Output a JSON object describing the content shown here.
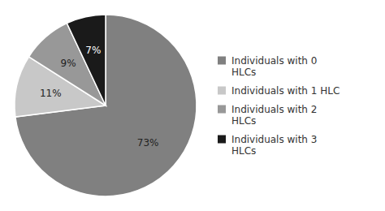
{
  "chart_data": {
    "type": "pie",
    "categories": [
      "Individuals with 0\nHLCs",
      "Individuals with 1 HLC",
      "Individuals with 2\nHLCs",
      "Individuals with 3\nHLCs"
    ],
    "values": [
      73,
      11,
      9,
      7
    ],
    "value_labels": [
      "73%",
      "11%",
      "9%",
      "7%"
    ],
    "colors": [
      "#808080",
      "#c8c8c8",
      "#989898",
      "#1a1a1a"
    ],
    "data_labels": true,
    "legend": "right"
  }
}
